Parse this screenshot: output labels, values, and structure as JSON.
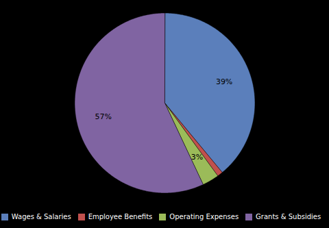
{
  "chart_data": {
    "type": "pie",
    "categories": [
      "Wages & Salaries",
      "Employee Benefits",
      "Operating Expenses",
      "Grants & Subsidies"
    ],
    "values": [
      39,
      1,
      3,
      57
    ],
    "colors": [
      "#5b7fbb",
      "#c0504d",
      "#9bbb59",
      "#8064a2"
    ],
    "data_labels": true,
    "value_labels": [
      "39%",
      null,
      "3%",
      "57%"
    ],
    "legend": "bottom"
  }
}
